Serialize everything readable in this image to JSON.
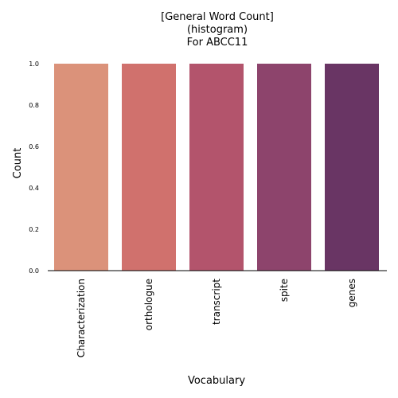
{
  "chart_data": {
    "type": "bar",
    "title_lines": [
      "[General Word Count]",
      "(histogram)",
      "For ABCC11"
    ],
    "xlabel": "Vocabulary",
    "ylabel": "Count",
    "categories": [
      "Characterization",
      "orthologue",
      "transcript",
      "spite",
      "genes"
    ],
    "values": [
      1,
      1,
      1,
      1,
      1
    ],
    "ylim": [
      0,
      1
    ],
    "yticks": [
      "0.0",
      "0.2",
      "0.4",
      "0.6",
      "0.8",
      "1.0"
    ],
    "grid": false,
    "legend": "none",
    "colors": [
      "#db927a",
      "#d0716d",
      "#b3546c",
      "#8d446c",
      "#693564"
    ]
  }
}
